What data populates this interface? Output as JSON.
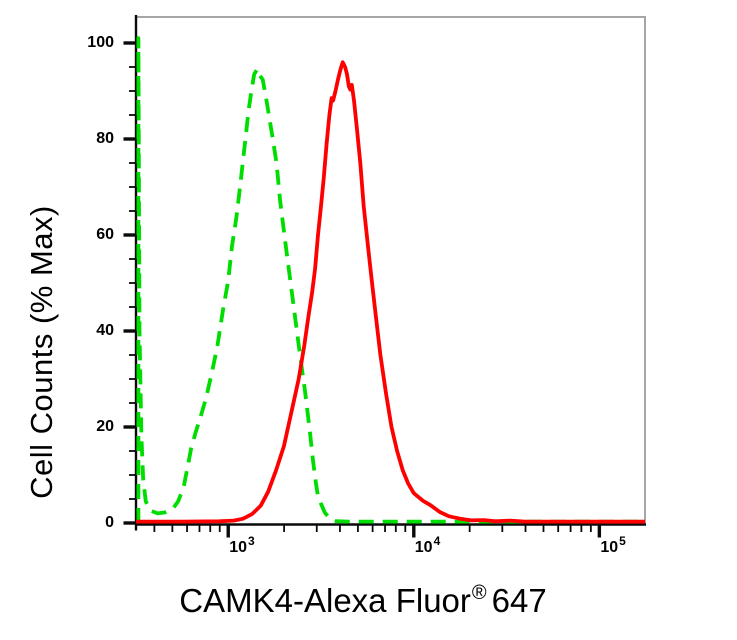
{
  "figure": {
    "background": "#ffffff",
    "y_axis_title": "Cell Counts (% Max)",
    "x_axis_title": {
      "pre": "CAMK4-Alexa Fluor",
      "sup": "®",
      "post": "647"
    },
    "border_color": "#a6a6a6",
    "axis_color": "#0a0a0a",
    "text_color": "#000000"
  },
  "chart_data": {
    "type": "line",
    "title": "",
    "xlabel": "CAMK4-Alexa Fluor® 647",
    "ylabel": "Cell Counts (% Max)",
    "x_scale": "log10",
    "x_range_log10": [
      2.503,
      5.246
    ],
    "ylim": [
      0,
      105
    ],
    "grid": false,
    "legend": null,
    "y_ticks": {
      "major": [
        0,
        20,
        40,
        60,
        80,
        100
      ],
      "minor_step": 5
    },
    "x_ticks": {
      "major_decades": [
        3,
        4,
        5
      ],
      "minor_mantissas": [
        2,
        3,
        4,
        5,
        6,
        7,
        8,
        9
      ],
      "label_base": "10"
    },
    "series": [
      {
        "name": "green-dashed-control",
        "style": "dashed",
        "color": "#00dd00",
        "peak": {
          "x": 1400,
          "pct": 94.6
        },
        "points": [
          [
            2.516,
            0
          ],
          [
            2.516,
            101
          ],
          [
            2.522,
            40
          ],
          [
            2.532,
            18
          ],
          [
            2.542,
            9
          ],
          [
            2.556,
            4.5
          ],
          [
            2.58,
            2.6
          ],
          [
            2.62,
            2.0
          ],
          [
            2.66,
            2.2
          ],
          [
            2.7,
            2.9
          ],
          [
            2.73,
            4.5
          ],
          [
            2.76,
            7.5
          ],
          [
            2.78,
            11.5
          ],
          [
            2.8,
            15.5
          ],
          [
            2.825,
            19
          ],
          [
            2.85,
            22
          ],
          [
            2.88,
            26
          ],
          [
            2.91,
            31
          ],
          [
            2.94,
            36.5
          ],
          [
            2.97,
            44
          ],
          [
            3.0,
            50.5
          ],
          [
            3.02,
            57.5
          ],
          [
            3.045,
            64
          ],
          [
            3.065,
            70.5
          ],
          [
            3.09,
            79
          ],
          [
            3.11,
            86
          ],
          [
            3.125,
            90
          ],
          [
            3.14,
            93.5
          ],
          [
            3.157,
            94.6
          ],
          [
            3.17,
            93.2
          ],
          [
            3.186,
            92.4
          ],
          [
            3.2,
            89.5
          ],
          [
            3.215,
            86
          ],
          [
            3.24,
            80
          ],
          [
            3.26,
            75
          ],
          [
            3.28,
            67
          ],
          [
            3.306,
            59
          ],
          [
            3.333,
            51
          ],
          [
            3.36,
            43
          ],
          [
            3.387,
            35
          ],
          [
            3.414,
            27.5
          ],
          [
            3.44,
            19
          ],
          [
            3.457,
            13
          ],
          [
            3.472,
            8.5
          ],
          [
            3.484,
            5.5
          ],
          [
            3.52,
            2.2
          ],
          [
            3.548,
            0.9
          ],
          [
            3.58,
            0.4
          ],
          [
            3.65,
            0.3
          ],
          [
            3.8,
            0.3
          ],
          [
            4.0,
            0.3
          ],
          [
            4.2,
            0.3
          ],
          [
            4.42,
            0.3
          ],
          [
            4.65,
            0.3
          ],
          [
            4.88,
            0.3
          ],
          [
            5.1,
            0.3
          ],
          [
            5.246,
            0.3
          ]
        ]
      },
      {
        "name": "red-solid-stained",
        "style": "solid",
        "color": "#ff0000",
        "peak": {
          "x": 4150,
          "pct": 96
        },
        "points": [
          [
            2.503,
            0.3
          ],
          [
            2.75,
            0.3
          ],
          [
            2.95,
            0.35
          ],
          [
            3.03,
            0.5
          ],
          [
            3.08,
            0.9
          ],
          [
            3.13,
            1.9
          ],
          [
            3.175,
            3.6
          ],
          [
            3.215,
            6.5
          ],
          [
            3.258,
            11
          ],
          [
            3.3,
            16
          ],
          [
            3.34,
            23
          ],
          [
            3.38,
            30
          ],
          [
            3.41,
            37
          ],
          [
            3.432,
            43
          ],
          [
            3.452,
            48
          ],
          [
            3.468,
            53
          ],
          [
            3.484,
            60
          ],
          [
            3.5,
            66
          ],
          [
            3.515,
            72
          ],
          [
            3.53,
            79
          ],
          [
            3.545,
            85
          ],
          [
            3.557,
            88.5
          ],
          [
            3.565,
            88
          ],
          [
            3.578,
            90
          ],
          [
            3.592,
            92.5
          ],
          [
            3.605,
            94.5
          ],
          [
            3.617,
            96
          ],
          [
            3.63,
            95
          ],
          [
            3.64,
            93.5
          ],
          [
            3.65,
            91
          ],
          [
            3.658,
            90.3
          ],
          [
            3.666,
            91.3
          ],
          [
            3.678,
            88
          ],
          [
            3.694,
            82
          ],
          [
            3.712,
            75
          ],
          [
            3.73,
            66
          ],
          [
            3.752,
            58
          ],
          [
            3.772,
            51
          ],
          [
            3.796,
            43
          ],
          [
            3.82,
            35
          ],
          [
            3.85,
            27
          ],
          [
            3.88,
            20
          ],
          [
            3.91,
            15
          ],
          [
            3.94,
            11
          ],
          [
            3.97,
            8.2
          ],
          [
            4.0,
            6.2
          ],
          [
            4.05,
            4.6
          ],
          [
            4.09,
            3.7
          ],
          [
            4.14,
            2.3
          ],
          [
            4.19,
            1.4
          ],
          [
            4.25,
            0.9
          ],
          [
            4.31,
            0.55
          ],
          [
            4.38,
            0.6
          ],
          [
            4.44,
            0.35
          ],
          [
            4.52,
            0.5
          ],
          [
            4.6,
            0.3
          ],
          [
            4.78,
            0.3
          ],
          [
            5.0,
            0.28
          ],
          [
            5.246,
            0.28
          ]
        ]
      }
    ]
  }
}
